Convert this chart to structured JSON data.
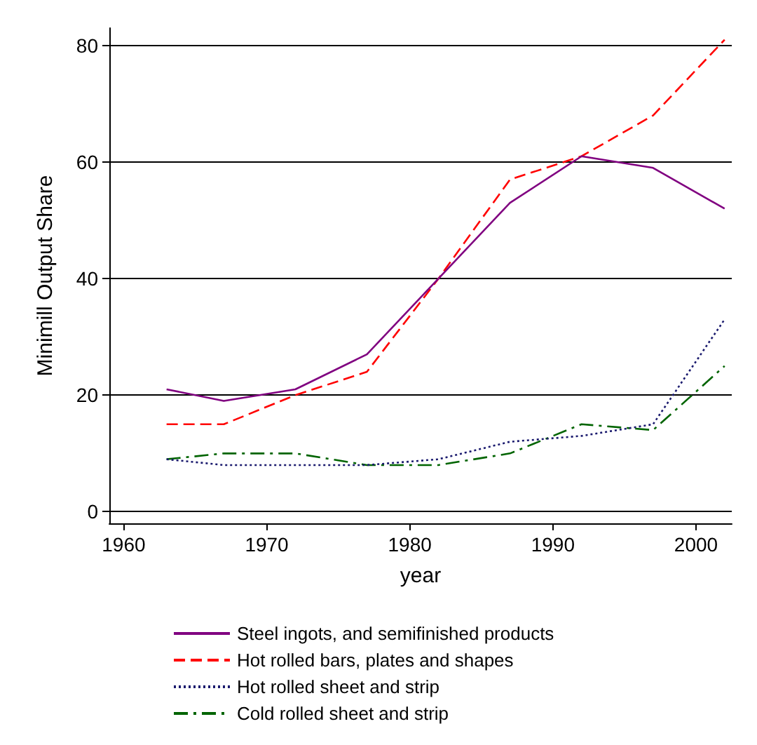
{
  "chart_data": {
    "type": "line",
    "xlabel": "year",
    "ylabel": "Minimill Output Share",
    "x": [
      1963,
      1967,
      1972,
      1977,
      1982,
      1987,
      1992,
      1997,
      2002
    ],
    "xlim": [
      1959,
      2002.5
    ],
    "xticks": [
      1960,
      1970,
      1980,
      1990,
      2000
    ],
    "ylim": [
      -2,
      83
    ],
    "yticks": [
      0,
      20,
      40,
      60,
      80
    ],
    "grid": "y",
    "legend": "bottom",
    "marker": "none",
    "series": [
      {
        "name": "Steel ingots, and semifinished products",
        "color": "#800080",
        "line_style": "solid",
        "values": [
          21,
          19,
          21,
          27,
          40,
          53,
          61,
          59,
          52
        ]
      },
      {
        "name": "Hot rolled bars, plates and shapes",
        "color": "#ff0000",
        "line_style": "dashed",
        "values": [
          15,
          15,
          20,
          24,
          40,
          57,
          61,
          68,
          81
        ]
      },
      {
        "name": "Hot rolled sheet and strip",
        "color": "#1a1a6e",
        "line_style": "dotted",
        "values": [
          9,
          8,
          8,
          8,
          9,
          12,
          13,
          15,
          33
        ]
      },
      {
        "name": "Cold rolled sheet and strip",
        "color": "#006400",
        "line_style": "dashdot",
        "values": [
          9,
          10,
          10,
          8,
          8,
          10,
          15,
          14,
          25
        ]
      }
    ]
  }
}
